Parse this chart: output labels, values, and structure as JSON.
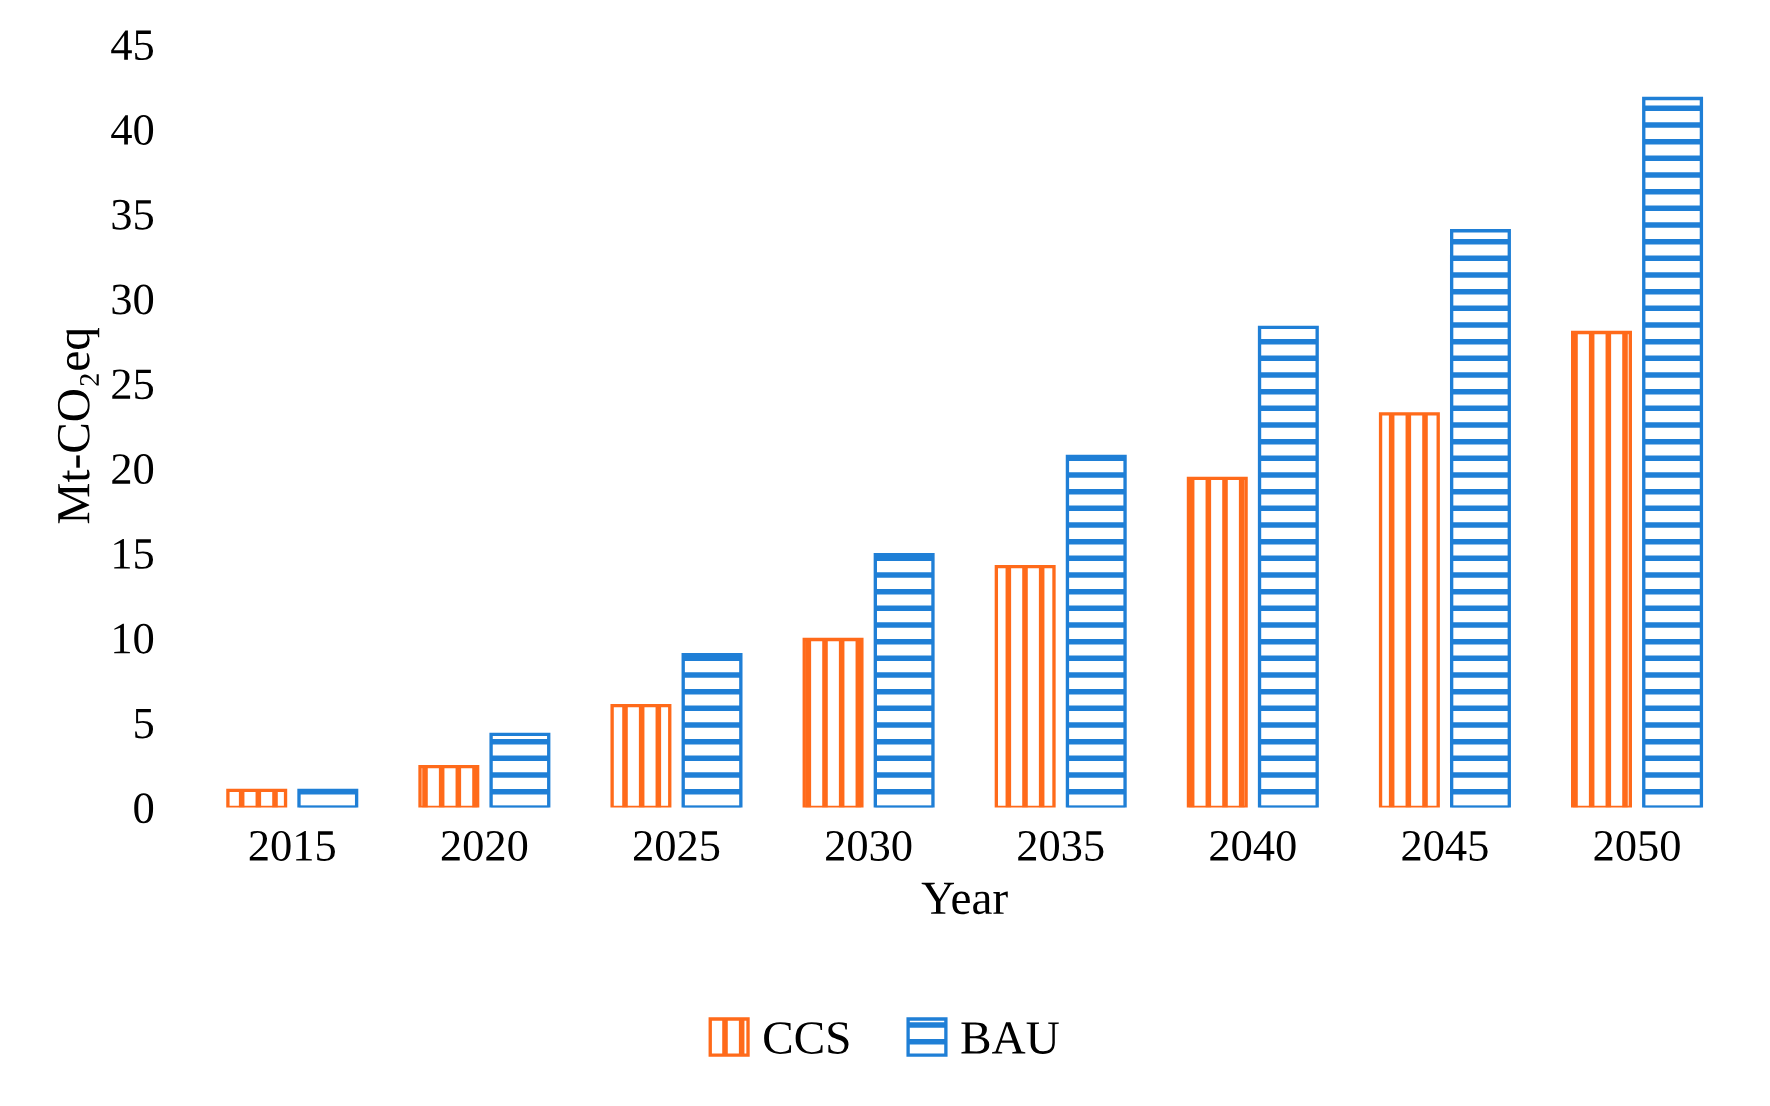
{
  "chart_data": {
    "type": "bar",
    "xlabel": "Year",
    "ylabel": "Mt-CO₂eq",
    "categories": [
      "2015",
      "2020",
      "2025",
      "2030",
      "2035",
      "2040",
      "2045",
      "2050"
    ],
    "series": [
      {
        "name": "CCS",
        "color": "#ff6a1a",
        "values": [
          1.0,
          2.4,
          6.0,
          9.9,
          14.2,
          19.4,
          23.2,
          28.0
        ]
      },
      {
        "name": "BAU",
        "color": "#1f7fd6",
        "values": [
          1.0,
          4.3,
          9.0,
          14.9,
          20.7,
          28.3,
          34.0,
          41.8
        ]
      }
    ],
    "ylim": [
      0,
      45
    ],
    "yticks": [
      0,
      5,
      10,
      15,
      20,
      25,
      30,
      35,
      40,
      45
    ],
    "grid": false,
    "legend": "bottom"
  }
}
